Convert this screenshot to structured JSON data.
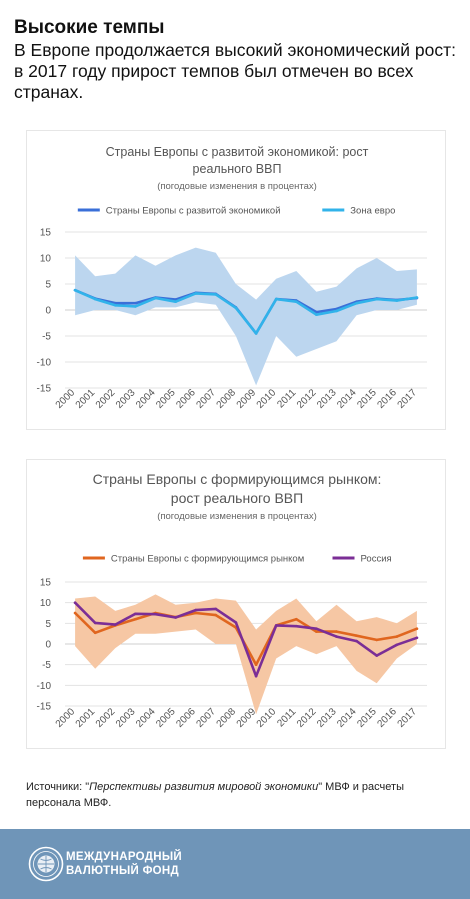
{
  "header": {
    "title": "Высокие темпы",
    "subtitle": "В Европе продолжается высокий экономический рост: в 2017 году прирост темпов был отмечен во всех странах."
  },
  "chart_data": [
    {
      "type": "line",
      "title_line1": "Страны Европы с развитой экономикой: рост",
      "title_line2": "реального ВВП",
      "subtitle": "(погодовые изменения в процентах)",
      "x": [
        "2000",
        "2001",
        "2002",
        "2003",
        "2004",
        "2005",
        "2006",
        "2007",
        "2008",
        "2009",
        "2010",
        "2011",
        "2012",
        "2013",
        "2014",
        "2015",
        "2016",
        "2017"
      ],
      "yticks": [
        15,
        10,
        5,
        0,
        -5,
        -10,
        -15
      ],
      "ylim": [
        -15,
        15
      ],
      "series": [
        {
          "name": "Страны Европы с развитой экономикой",
          "color": "#3a6fd8",
          "values": [
            3.8,
            2.2,
            1.3,
            1.3,
            2.4,
            2.0,
            3.3,
            3.1,
            0.5,
            -4.5,
            2.1,
            1.8,
            -0.4,
            0.2,
            1.6,
            2.2,
            1.9,
            2.3
          ]
        },
        {
          "name": "Зона евро",
          "color": "#31b3ea",
          "values": [
            3.8,
            2.1,
            0.9,
            0.7,
            2.3,
            1.6,
            3.2,
            3.0,
            0.4,
            -4.5,
            2.1,
            1.6,
            -0.9,
            -0.2,
            1.3,
            2.1,
            1.8,
            2.4
          ]
        }
      ],
      "band": {
        "color": "#bcd6ef",
        "upper": [
          10.5,
          6.5,
          7.0,
          10.5,
          8.5,
          10.5,
          12.0,
          11.0,
          5.0,
          2.0,
          6.0,
          7.5,
          3.5,
          4.5,
          8.0,
          10.0,
          7.5,
          7.8
        ],
        "lower": [
          -1.0,
          0.0,
          0.0,
          -1.0,
          0.5,
          0.5,
          1.5,
          1.0,
          -5.0,
          -14.5,
          -5.0,
          -9.0,
          -7.5,
          -6.0,
          -1.0,
          0.0,
          0.0,
          1.0
        ]
      }
    },
    {
      "type": "line",
      "title_line1": "Страны Европы с формирующимся рынком:",
      "title_line2": "рост реального ВВП",
      "subtitle": "(погодовые изменения в процентах)",
      "x": [
        "2000",
        "2001",
        "2002",
        "2003",
        "2004",
        "2005",
        "2006",
        "2007",
        "2008",
        "2009",
        "2010",
        "2011",
        "2012",
        "2013",
        "2014",
        "2015",
        "2016",
        "2017"
      ],
      "yticks": [
        15,
        10,
        5,
        0,
        -5,
        -10,
        -15
      ],
      "ylim": [
        -15,
        15
      ],
      "series": [
        {
          "name": "Страны Европы с формирующимся рынком",
          "color": "#e0661f",
          "values": [
            7.5,
            2.7,
            4.5,
            6.0,
            7.5,
            6.5,
            7.5,
            7.0,
            4.0,
            -5.0,
            4.5,
            6.0,
            3.0,
            3.0,
            2.0,
            1.0,
            1.8,
            3.7
          ]
        },
        {
          "name": "Россия",
          "color": "#7b2e96",
          "values": [
            10.0,
            5.1,
            4.7,
            7.3,
            7.2,
            6.4,
            8.2,
            8.5,
            5.2,
            -7.8,
            4.5,
            4.3,
            3.7,
            1.8,
            0.7,
            -2.8,
            -0.2,
            1.5
          ]
        }
      ],
      "band": {
        "color": "#f6c7a4",
        "upper": [
          11.0,
          11.5,
          8.0,
          9.5,
          12.0,
          9.5,
          10.0,
          11.0,
          10.5,
          3.5,
          8.0,
          11.0,
          5.5,
          9.5,
          5.5,
          6.5,
          5.0,
          8.0
        ],
        "lower": [
          -0.5,
          -6.0,
          -1.0,
          2.5,
          2.5,
          3.0,
          3.5,
          0.0,
          0.0,
          -17.0,
          -3.5,
          -0.5,
          -2.5,
          -0.5,
          -6.5,
          -9.5,
          -3.5,
          0.0
        ]
      }
    }
  ],
  "source": {
    "prefix": "Источники: \"",
    "publication": "Перспективы развития мировой экономики",
    "suffix": "\" МВФ и расчеты персонала МВФ."
  },
  "footer": {
    "logo_icon": "imf-seal-icon",
    "name_line1": "МЕЖДУНАРОДНЫЙ",
    "name_line2": "ВАЛЮТНЫЙ ФОНД",
    "background": "#6f95b8"
  }
}
